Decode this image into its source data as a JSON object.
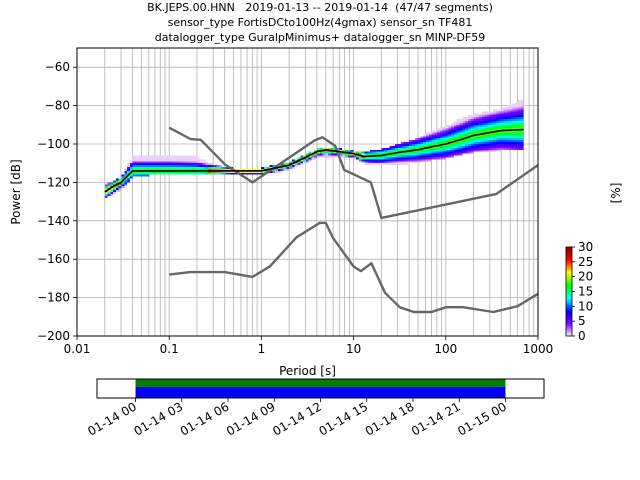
{
  "title_lines": [
    "BK.JEPS.00.HNN   2019-01-13 -- 2019-01-14  (47/47 segments)",
    "sensor_type FortisDCto100Hz(4gmax) sensor_sn TF481",
    "datalogger_type GuralpMinimus+ datalogger_sn MINP-DF59"
  ],
  "colors": {
    "background": "#ffffff",
    "grid": "#b0b0b0",
    "noise_models": "#666666",
    "mean_curve": "#000000",
    "coverage_top": "#008000",
    "coverage_bottom": "#0000ff"
  },
  "chart_data": [
    {
      "type": "heatmap",
      "subtype": "probabilistic power spectral density",
      "xlabel": "Period [s]",
      "ylabel": "Power [dB]",
      "xscale": "log",
      "xlim": [
        0.01,
        1000
      ],
      "ylim": [
        -200,
        -50
      ],
      "x_ticks": [
        "0.01",
        "0.1",
        "1",
        "10",
        "100",
        "1000"
      ],
      "x_tick_values": [
        0.01,
        0.1,
        1,
        10,
        100,
        1000
      ],
      "y_ticks": [
        "−200",
        "−180",
        "−160",
        "−140",
        "−120",
        "−100",
        "−80",
        "−60"
      ],
      "y_tick_values": [
        -200,
        -180,
        -160,
        -140,
        -120,
        -100,
        -80,
        -60
      ],
      "grid": true,
      "colorbar": {
        "label": "[%]",
        "ticks": [
          "0",
          "5",
          "10",
          "15",
          "20",
          "25",
          "30"
        ],
        "range": [
          0,
          30
        ],
        "colormap_stops": [
          "#ffffff",
          "#7f00ff",
          "#0000ff",
          "#00ffff",
          "#00ff00",
          "#ffff00",
          "#ff0000",
          "#8b0000"
        ]
      },
      "noise_model_high": {
        "periods": [
          0.1,
          0.17,
          0.22,
          0.4,
          0.8,
          3.8,
          4.6,
          6.3,
          7.9,
          15.4,
          20,
          354.8,
          1000
        ],
        "db": [
          -91.5,
          -97.4,
          -97.8,
          -110.5,
          -120,
          -98,
          -96.5,
          -101,
          -113.5,
          -120,
          -138.5,
          -126,
          -111
        ]
      },
      "noise_model_low": {
        "periods": [
          0.1,
          0.17,
          0.4,
          0.8,
          1.24,
          2.4,
          4.3,
          5,
          6,
          10,
          12,
          15.6,
          21.9,
          31.6,
          45,
          70,
          101,
          154,
          328,
          600,
          1000
        ],
        "db": [
          -168,
          -166.7,
          -166.7,
          -169.2,
          -163.7,
          -148.6,
          -141.1,
          -141.1,
          -149,
          -163.8,
          -166.2,
          -162.1,
          -177.5,
          -185,
          -187.5,
          -187.5,
          -185,
          -185,
          -187.5,
          -184.5,
          -178
        ]
      },
      "mean_psd": {
        "periods": [
          0.02,
          0.025,
          0.03,
          0.04,
          0.06,
          0.1,
          0.2,
          0.5,
          1.0,
          2.0,
          3.0,
          4.0,
          5.0,
          7.0,
          10,
          13,
          20,
          30,
          50,
          70,
          100,
          150,
          200,
          400,
          700
        ],
        "db": [
          -125,
          -122,
          -120,
          -114,
          -114,
          -114,
          -114,
          -114,
          -114,
          -111,
          -107,
          -104,
          -103,
          -104,
          -105,
          -106.5,
          -106,
          -104.5,
          -103,
          -101.5,
          -100,
          -97.5,
          -95.5,
          -93,
          -92.5
        ]
      },
      "psd_spread": {
        "periods": [
          0.02,
          0.03,
          0.04,
          0.06,
          0.1,
          0.2,
          0.3,
          0.5,
          1,
          2,
          4,
          6,
          10,
          15,
          20,
          40,
          70,
          100,
          150,
          200,
          400,
          700
        ],
        "upper_db": [
          -122,
          -118,
          -107,
          -106,
          -106,
          -107,
          -111,
          -113,
          -113,
          -110,
          -103,
          -102,
          -104,
          -104,
          -103,
          -99,
          -94,
          -91,
          -87,
          -85,
          -82,
          -77
        ],
        "lower_db": [
          -128,
          -124,
          -117,
          -116,
          -116,
          -116,
          -116,
          -116,
          -116,
          -113,
          -107,
          -106,
          -107,
          -111,
          -111,
          -110,
          -108,
          -107,
          -105,
          -104,
          -103,
          -102
        ]
      }
    },
    {
      "type": "bar",
      "subtype": "data coverage timeline",
      "x_ticks": [
        "01-14 00",
        "01-14 03",
        "01-14 06",
        "01-14 09",
        "01-14 12",
        "01-14 15",
        "01-14 18",
        "01-14 21",
        "01-15 00"
      ],
      "x_tick_hours": [
        0,
        3,
        6,
        9,
        12,
        15,
        18,
        21,
        24
      ],
      "coverage_start_hour": 0,
      "coverage_end_hour": 24
    }
  ]
}
